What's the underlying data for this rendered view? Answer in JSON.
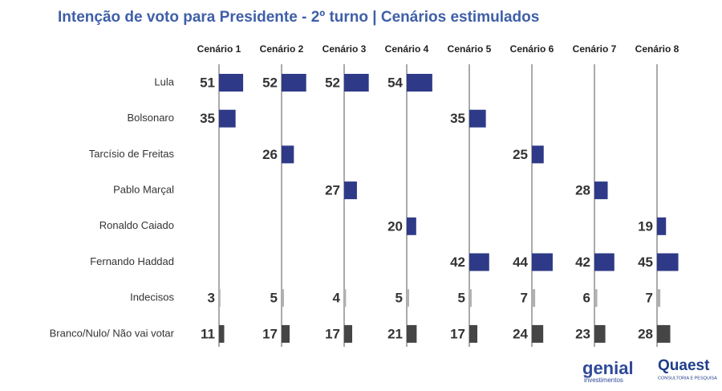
{
  "chart_data": {
    "type": "bar",
    "orientation": "horizontal",
    "title": "Intenção de voto para Presidente - 2º turno | Cenários estimulados",
    "categories": [
      "Lula",
      "Bolsonaro",
      "Tarcísio de Freitas",
      "Pablo Marçal",
      "Ronaldo Caiado",
      "Fernando Haddad",
      "Indecisos",
      "Branco/Nulo/ Não vai votar"
    ],
    "category_colors": [
      "#2e3a87",
      "#2e3a87",
      "#2e3a87",
      "#2e3a87",
      "#2e3a87",
      "#2e3a87",
      "#b0b0b0",
      "#454545"
    ],
    "xlim": [
      0,
      100
    ],
    "series": [
      {
        "name": "Cenário 1",
        "values": [
          51,
          35,
          null,
          null,
          null,
          null,
          3,
          11
        ]
      },
      {
        "name": "Cenário 2",
        "values": [
          52,
          null,
          26,
          null,
          null,
          null,
          5,
          17
        ]
      },
      {
        "name": "Cenário 3",
        "values": [
          52,
          null,
          null,
          27,
          null,
          null,
          4,
          17
        ]
      },
      {
        "name": "Cenário 4",
        "values": [
          54,
          null,
          null,
          null,
          20,
          null,
          5,
          21
        ]
      },
      {
        "name": "Cenário 5",
        "values": [
          null,
          35,
          null,
          null,
          null,
          42,
          5,
          17
        ]
      },
      {
        "name": "Cenário 6",
        "values": [
          null,
          null,
          25,
          null,
          null,
          44,
          7,
          24
        ]
      },
      {
        "name": "Cenário 7",
        "values": [
          null,
          null,
          null,
          28,
          null,
          42,
          6,
          23
        ]
      },
      {
        "name": "Cenário 8",
        "values": [
          null,
          null,
          null,
          null,
          19,
          45,
          7,
          28
        ]
      }
    ]
  },
  "logos": {
    "genial": "genial",
    "genial_sub": "investimentos",
    "quaest": "Quaest",
    "quaest_sub": "CONSULTORIA E PESQUISA"
  }
}
